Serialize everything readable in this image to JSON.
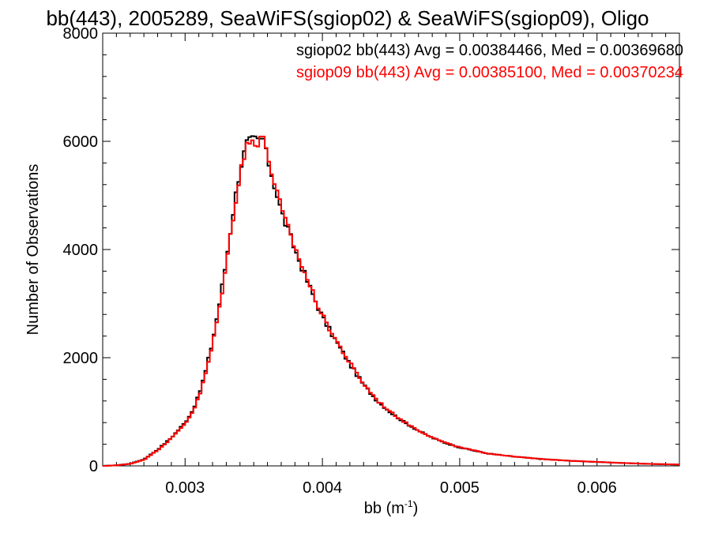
{
  "chart_data": {
    "type": "line",
    "title": "bb(443), 2005289, SeaWiFS(sgiop02) & SeaWiFS(sgiop09), Oligo",
    "xlabel": "bb (m",
    "xlabel_sup": "-1",
    "xlabel_close": ")",
    "ylabel": "Number of Observations",
    "xlim": [
      0.0024,
      0.0066
    ],
    "ylim": [
      0,
      8000
    ],
    "xticks": [
      0.003,
      0.004,
      0.005,
      0.006
    ],
    "xtick_labels": [
      "0.003",
      "0.004",
      "0.005",
      "0.006"
    ],
    "yticks": [
      0,
      2000,
      4000,
      6000,
      8000
    ],
    "ytick_labels": [
      "0",
      "2000",
      "4000",
      "6000",
      "8000"
    ],
    "grid": false,
    "legend_position": "top-right",
    "series": [
      {
        "name": "sgiop02",
        "color": "#000000",
        "annotation": "sgiop02 bb(443) Avg = 0.00384466, Med = 0.00369680",
        "peak_y": 6050
      },
      {
        "name": "sgiop09",
        "color": "#ff0000",
        "annotation": "sgiop09 bb(443) Avg = 0.00385100, Med = 0.00370234",
        "peak_y": 6090
      }
    ],
    "curve_x": [
      0.0024,
      0.0025,
      0.0026,
      0.0027,
      0.0028,
      0.0029,
      0.003,
      0.00305,
      0.0031,
      0.00315,
      0.0032,
      0.00325,
      0.0033,
      0.00335,
      0.0034,
      0.00345,
      0.0035,
      0.00355,
      0.0036,
      0.00365,
      0.0037,
      0.00375,
      0.0038,
      0.0039,
      0.004,
      0.0041,
      0.0042,
      0.0043,
      0.0044,
      0.0045,
      0.0046,
      0.0047,
      0.0048,
      0.0049,
      0.005,
      0.0052,
      0.0054,
      0.0056,
      0.0058,
      0.006,
      0.0062,
      0.0064,
      0.0066
    ],
    "curve_y": [
      0,
      10,
      40,
      120,
      300,
      520,
      800,
      1000,
      1300,
      1750,
      2300,
      3000,
      3800,
      4700,
      5500,
      5950,
      6020,
      6000,
      5700,
      5200,
      4700,
      4350,
      4000,
      3350,
      2750,
      2300,
      1880,
      1500,
      1200,
      980,
      800,
      650,
      520,
      420,
      340,
      230,
      170,
      125,
      95,
      72,
      52,
      35,
      25
    ]
  }
}
